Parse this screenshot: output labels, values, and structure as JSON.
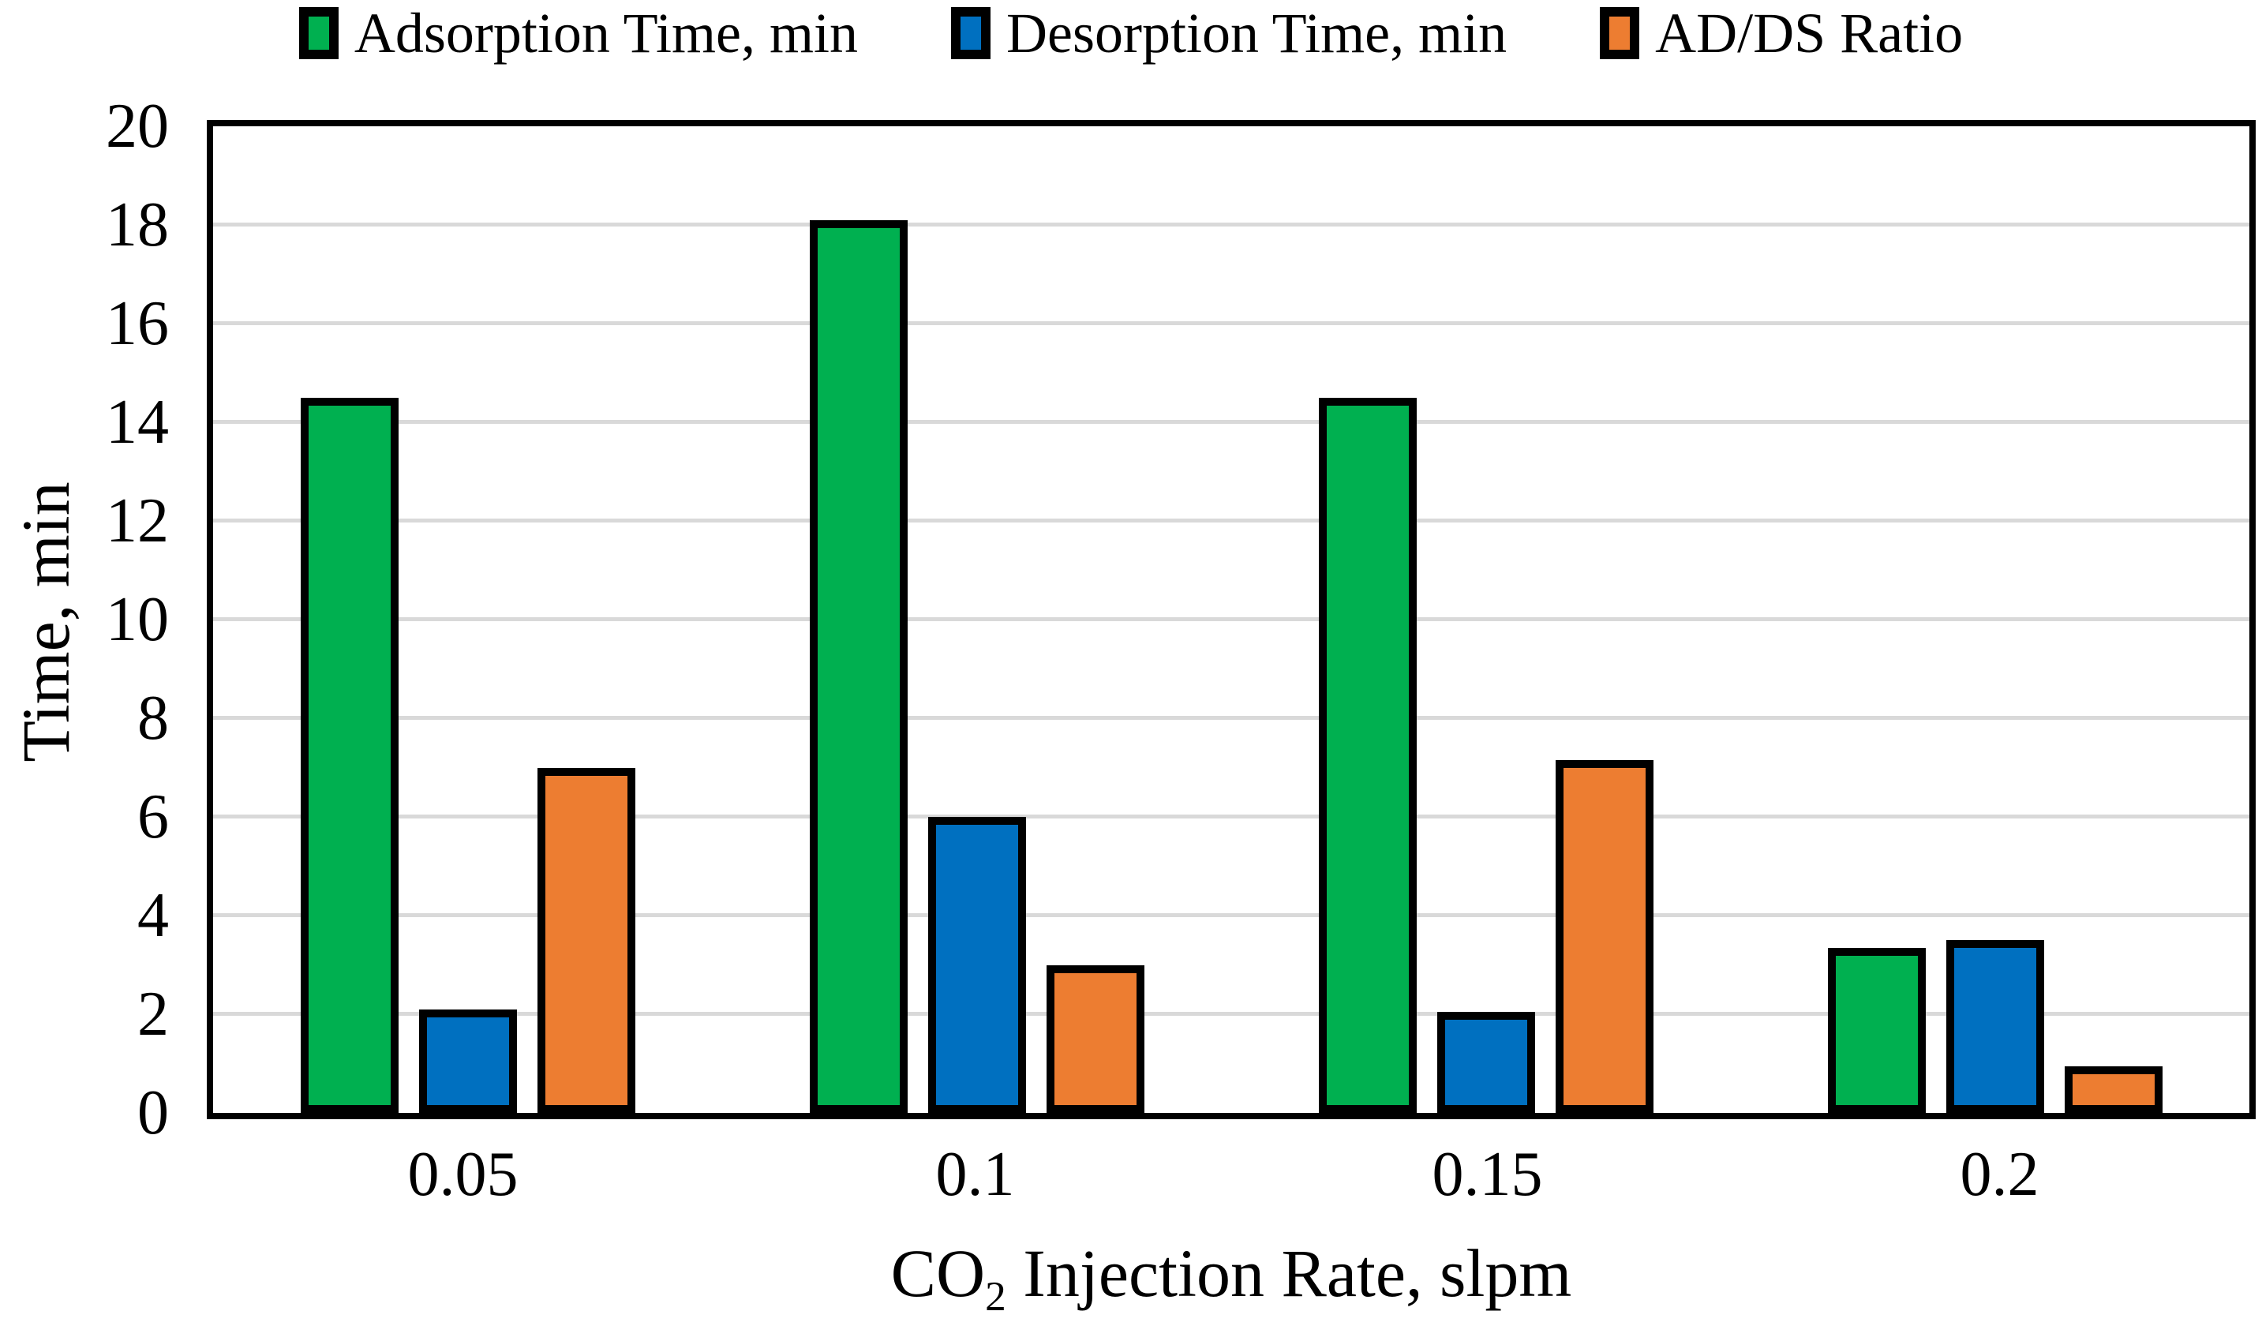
{
  "chart_data": {
    "type": "bar",
    "categories": [
      "0.05",
      "0.1",
      "0.15",
      "0.2"
    ],
    "series": [
      {
        "name": "Adsorption Time, min",
        "color": "#00B050",
        "values": [
          14.5,
          18.1,
          14.5,
          3.35
        ]
      },
      {
        "name": "Desorption Time, min",
        "color": "#0070C0",
        "values": [
          2.1,
          6.0,
          2.05,
          3.5
        ]
      },
      {
        "name": "AD/DS Ratio",
        "color": "#ED7D31",
        "values": [
          7.0,
          3.0,
          7.15,
          0.95
        ]
      }
    ],
    "title": "",
    "xlabel": "CO2 Injection Rate, slpm",
    "xlabel_parts": {
      "prefix": "CO",
      "sub": "2",
      "suffix": " Injection Rate, slpm"
    },
    "ylabel": "Time, min",
    "ylim": [
      0,
      20
    ],
    "ytick_step": 2,
    "yticks": [
      0,
      2,
      4,
      6,
      8,
      10,
      12,
      14,
      16,
      18,
      20
    ],
    "grid": "horizontal-only",
    "legend_position": "top-center",
    "colors": {
      "background": "#FFFFFF",
      "gridline": "#D9D9D9",
      "axis_border": "#000000",
      "bar_outline": "#000000",
      "text": "#000000"
    }
  }
}
